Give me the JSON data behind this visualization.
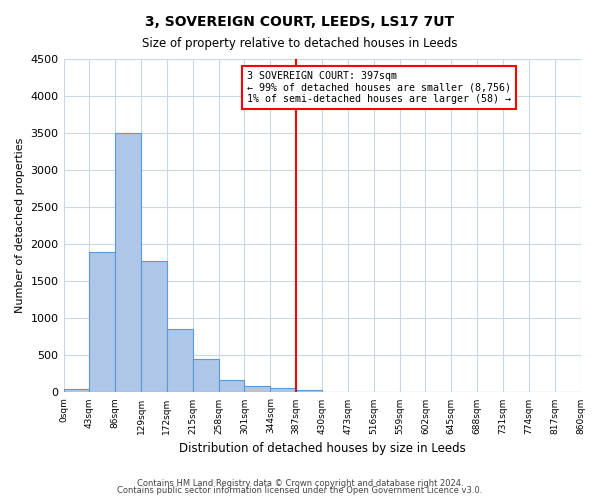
{
  "title": "3, SOVEREIGN COURT, LEEDS, LS17 7UT",
  "subtitle": "Size of property relative to detached houses in Leeds",
  "xlabel": "Distribution of detached houses by size in Leeds",
  "ylabel": "Number of detached properties",
  "bar_edges": [
    0,
    43,
    86,
    129,
    172,
    215,
    258,
    301,
    344,
    387,
    430,
    473,
    516,
    559,
    602,
    645,
    688,
    731,
    774,
    817,
    860
  ],
  "bar_heights": [
    40,
    1900,
    3500,
    1780,
    850,
    450,
    165,
    85,
    55,
    35,
    0,
    0,
    0,
    0,
    0,
    0,
    0,
    0,
    0,
    0
  ],
  "bar_color": "#aec6e8",
  "bar_edgecolor": "#5b9bd5",
  "vline_x": 387,
  "vline_color": "red",
  "annotation_title": "3 SOVEREIGN COURT: 397sqm",
  "annotation_line1": "← 99% of detached houses are smaller (8,756)",
  "annotation_line2": "1% of semi-detached houses are larger (58) →",
  "annotation_box_edgecolor": "red",
  "ylim": [
    0,
    4500
  ],
  "yticks": [
    0,
    500,
    1000,
    1500,
    2000,
    2500,
    3000,
    3500,
    4000,
    4500
  ],
  "xtick_labels": [
    "0sqm",
    "43sqm",
    "86sqm",
    "129sqm",
    "172sqm",
    "215sqm",
    "258sqm",
    "301sqm",
    "344sqm",
    "387sqm",
    "430sqm",
    "473sqm",
    "516sqm",
    "559sqm",
    "602sqm",
    "645sqm",
    "688sqm",
    "731sqm",
    "774sqm",
    "817sqm",
    "860sqm"
  ],
  "footer1": "Contains HM Land Registry data © Crown copyright and database right 2024.",
  "footer2": "Contains public sector information licensed under the Open Government Licence v3.0.",
  "background_color": "#ffffff",
  "grid_color": "#c8d8e8"
}
